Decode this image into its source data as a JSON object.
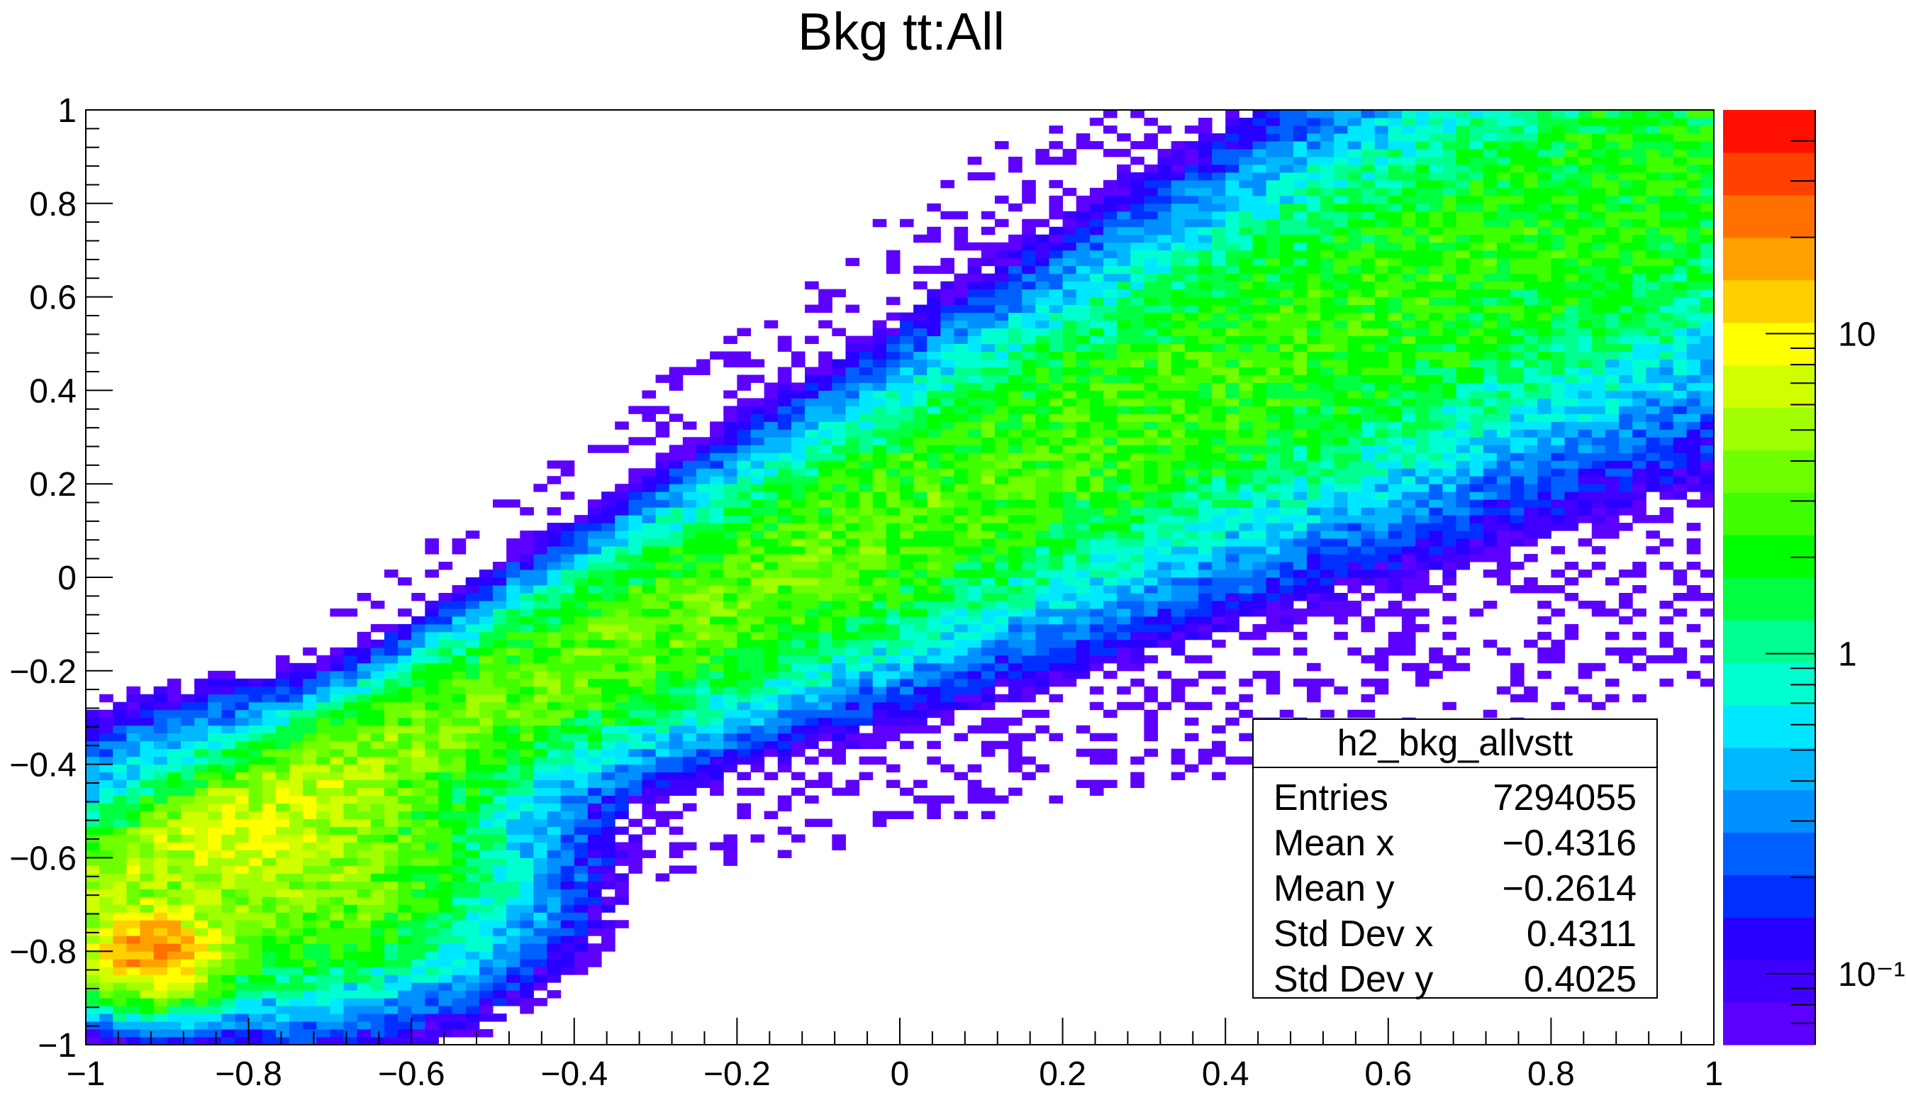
{
  "chart_data": {
    "type": "heatmap",
    "title": "Bkg tt:All",
    "xlabel": "",
    "ylabel": "",
    "xlim": [
      -1,
      1
    ],
    "ylim": [
      -1,
      1
    ],
    "x_ticks": [
      "−1",
      "−0.8",
      "−0.6",
      "−0.4",
      "−0.2",
      "0",
      "0.2",
      "0.4",
      "0.6",
      "0.8",
      "1"
    ],
    "y_ticks": [
      "−1",
      "−0.8",
      "−0.6",
      "−0.4",
      "−0.2",
      "0",
      "0.2",
      "0.4",
      "0.6",
      "0.8",
      "1"
    ],
    "colorbar": {
      "scale": "log",
      "range": [
        0.06,
        50
      ],
      "tick_labels": [
        "10⁻¹",
        "1",
        "10"
      ],
      "colors": [
        "#5c00ff",
        "#4000ff",
        "#2800ff",
        "#0030ff",
        "#0060ff",
        "#0090ff",
        "#00b8ff",
        "#00e8ff",
        "#00ffd0",
        "#00ff90",
        "#00ff40",
        "#00ff00",
        "#40ff00",
        "#70ff00",
        "#a0ff00",
        "#d0ff00",
        "#ffff00",
        "#ffd000",
        "#ffa000",
        "#ff7000",
        "#ff4000",
        "#ff1000"
      ]
    },
    "distribution": {
      "description_of_density": "correlated band along y ≈ x + 0.15, densest near (-0.92, -0.8)",
      "peak_x": -0.92,
      "peak_y": -0.8,
      "peak_value": 20
    },
    "stats": {
      "name": "h2_bkg_allvstt",
      "rows": [
        {
          "label": "Entries",
          "value": "7294055"
        },
        {
          "label": "Mean x",
          "value": "−0.4316"
        },
        {
          "label": "Mean y",
          "value": "−0.2614"
        },
        {
          "label": "Std Dev x",
          "value": "0.4311"
        },
        {
          "label": "Std Dev y",
          "value": "0.4025"
        }
      ]
    }
  }
}
